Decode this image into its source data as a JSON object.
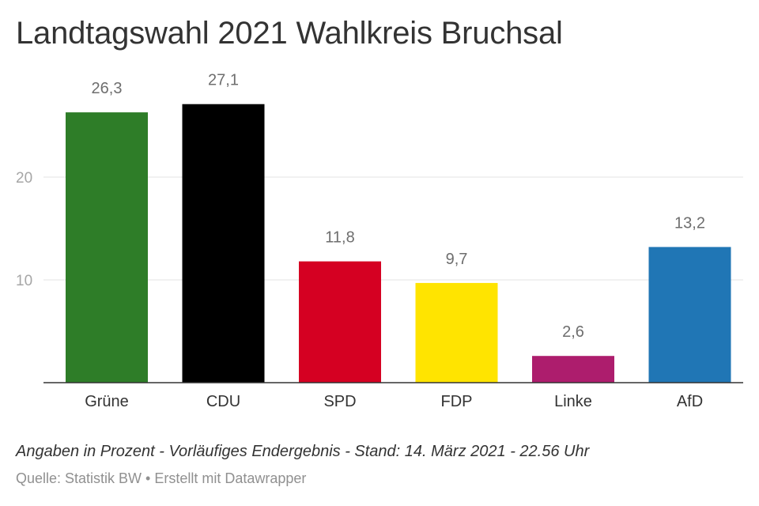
{
  "title": "Landtagswahl 2021 Wahlkreis Bruchsal",
  "note": "Angaben in Prozent - Vorläufiges Endergebnis - Stand: 14. März 2021 - 22.56 Uhr",
  "source": "Quelle: Statistik BW • Erstellt mit Datawrapper",
  "chart_data": {
    "type": "bar",
    "title": "Landtagswahl 2021 Wahlkreis Bruchsal",
    "xlabel": "",
    "ylabel": "",
    "categories": [
      "Grüne",
      "CDU",
      "SPD",
      "FDP",
      "Linke",
      "AfD"
    ],
    "values": [
      26.3,
      27.1,
      11.8,
      9.7,
      2.6,
      13.2
    ],
    "value_labels": [
      "26,3",
      "27,1",
      "11,8",
      "9,7",
      "2,6",
      "13,2"
    ],
    "colors": [
      "#2e7d28",
      "#000000",
      "#d50022",
      "#ffe400",
      "#ad1d6d",
      "#2076b5"
    ],
    "yticks": [
      10,
      20
    ],
    "ylim": [
      0,
      27.1
    ],
    "grid": true,
    "legend": "none"
  }
}
